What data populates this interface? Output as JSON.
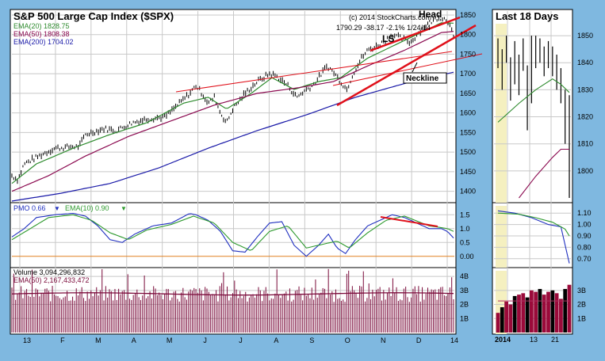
{
  "colors": {
    "frame_bg": "#7fb8e0",
    "panel_bg": "#ffffff",
    "grid": "#c8c8c8",
    "price": "#000000",
    "ema20": "#2e8b2e",
    "ema50": "#8b0a50",
    "ema200": "#1a1aa8",
    "annotation": "#e0101a",
    "pmo": "#2030c0",
    "pmo_ema": "#2e9a2e",
    "zero_line": "#e08020",
    "volume": "#7a0a3a",
    "volume_ema": "#7a0a3a",
    "last_days_bg": "#f5f0c0"
  },
  "main": {
    "title": "S&P 500 Large Cap Index ($SPX)",
    "copyright": "(c) 2014 StockCharts.com",
    "quote": "1790.29  -38.17  -2.1%  1/24/14",
    "legend": [
      {
        "label": "EMA(20) 1828.75",
        "color": "#2e8b2e"
      },
      {
        "label": "EMA(50) 1808.38",
        "color": "#8b0a50"
      },
      {
        "label": "EMA(200) 1704.02",
        "color": "#1a1aa8"
      }
    ],
    "annotations": {
      "head": "Head",
      "ls": "LS",
      "neckline": "Neckline"
    },
    "month_labels": [
      "13",
      "F",
      "M",
      "A",
      "M",
      "J",
      "J",
      "A",
      "S",
      "O",
      "N",
      "D",
      "14"
    ]
  },
  "pmo_panel": {
    "label_pmo": "PMO  0.66",
    "label_ema": "EMA(10)  0.90",
    "arrow_down": "▼"
  },
  "volume_panel": {
    "label_volume": "Volume  3,094,296,832",
    "label_ema": "EMA(50)  2,167,433,472"
  },
  "side": {
    "title": "Last 18 Days",
    "x_labels": [
      "2014",
      "13",
      "21"
    ]
  },
  "chart_data": [
    {
      "type": "line",
      "title": "S&P 500 Large Cap Index ($SPX)",
      "ylim": [
        1375,
        1860
      ],
      "yticks": [
        1400,
        1450,
        1500,
        1550,
        1600,
        1650,
        1700,
        1750,
        1800,
        1850
      ],
      "x_month_labels": [
        "13",
        "F",
        "M",
        "A",
        "M",
        "J",
        "J",
        "A",
        "S",
        "O",
        "N",
        "D",
        "14"
      ],
      "series": [
        {
          "name": "$SPX",
          "anchors": [
            [
              0,
              1440
            ],
            [
              5,
              1430
            ],
            [
              10,
              1470
            ],
            [
              25,
              1495
            ],
            [
              35,
              1510
            ],
            [
              55,
              1515
            ],
            [
              60,
              1545
            ],
            [
              75,
              1560
            ],
            [
              85,
              1555
            ],
            [
              98,
              1575
            ],
            [
              110,
              1585
            ],
            [
              125,
              1590
            ],
            [
              135,
              1620
            ],
            [
              145,
              1650
            ],
            [
              150,
              1670
            ],
            [
              155,
              1650
            ],
            [
              160,
              1625
            ],
            [
              165,
              1640
            ],
            [
              170,
              1600
            ],
            [
              175,
              1575
            ],
            [
              180,
              1610
            ],
            [
              190,
              1650
            ],
            [
              200,
              1680
            ],
            [
              210,
              1700
            ],
            [
              215,
              1695
            ],
            [
              225,
              1670
            ],
            [
              232,
              1640
            ],
            [
              238,
              1655
            ],
            [
              245,
              1670
            ],
            [
              250,
              1690
            ],
            [
              257,
              1720
            ],
            [
              262,
              1705
            ],
            [
              268,
              1680
            ],
            [
              273,
              1660
            ],
            [
              278,
              1700
            ],
            [
              285,
              1740
            ],
            [
              290,
              1760
            ],
            [
              300,
              1775
            ],
            [
              310,
              1800
            ],
            [
              318,
              1790
            ],
            [
              325,
              1780
            ],
            [
              333,
              1810
            ],
            [
              340,
              1830
            ],
            [
              348,
              1845
            ],
            [
              353,
              1840
            ],
            [
              357,
              1830
            ],
            [
              360,
              1790
            ]
          ]
        },
        {
          "name": "EMA(20)",
          "anchors": [
            [
              0,
              1420
            ],
            [
              20,
              1470
            ],
            [
              50,
              1510
            ],
            [
              80,
              1545
            ],
            [
              110,
              1575
            ],
            [
              140,
              1625
            ],
            [
              160,
              1640
            ],
            [
              175,
              1610
            ],
            [
              195,
              1650
            ],
            [
              212,
              1690
            ],
            [
              230,
              1660
            ],
            [
              250,
              1680
            ],
            [
              268,
              1690
            ],
            [
              290,
              1740
            ],
            [
              320,
              1785
            ],
            [
              350,
              1830
            ],
            [
              360,
              1829
            ]
          ]
        },
        {
          "name": "EMA(50)",
          "anchors": [
            [
              0,
              1400
            ],
            [
              30,
              1440
            ],
            [
              60,
              1490
            ],
            [
              95,
              1540
            ],
            [
              130,
              1580
            ],
            [
              165,
              1620
            ],
            [
              200,
              1650
            ],
            [
              235,
              1665
            ],
            [
              262,
              1680
            ],
            [
              290,
              1720
            ],
            [
              320,
              1760
            ],
            [
              350,
              1805
            ],
            [
              360,
              1808
            ]
          ]
        },
        {
          "name": "EMA(200)",
          "anchors": [
            [
              0,
              1375
            ],
            [
              40,
              1395
            ],
            [
              80,
              1420
            ],
            [
              120,
              1460
            ],
            [
              160,
              1510
            ],
            [
              200,
              1555
            ],
            [
              240,
              1595
            ],
            [
              280,
              1640
            ],
            [
              320,
              1675
            ],
            [
              360,
              1704
            ]
          ]
        }
      ]
    },
    {
      "type": "line",
      "title": "PMO",
      "ylim": [
        -0.35,
        1.85
      ],
      "yticks": [
        0.0,
        0.5,
        1.0,
        1.5
      ],
      "series": [
        {
          "name": "PMO",
          "anchors": [
            [
              0,
              0.7
            ],
            [
              10,
              1.0
            ],
            [
              20,
              1.4
            ],
            [
              35,
              1.5
            ],
            [
              50,
              1.55
            ],
            [
              60,
              1.45
            ],
            [
              70,
              1.1
            ],
            [
              80,
              0.6
            ],
            [
              90,
              0.5
            ],
            [
              100,
              0.8
            ],
            [
              115,
              1.1
            ],
            [
              130,
              1.2
            ],
            [
              145,
              1.55
            ],
            [
              150,
              1.5
            ],
            [
              160,
              1.3
            ],
            [
              170,
              0.9
            ],
            [
              180,
              0.2
            ],
            [
              190,
              0.15
            ],
            [
              200,
              0.7
            ],
            [
              210,
              1.2
            ],
            [
              220,
              1.25
            ],
            [
              230,
              0.4
            ],
            [
              240,
              0.0
            ],
            [
              250,
              0.4
            ],
            [
              258,
              0.8
            ],
            [
              265,
              0.3
            ],
            [
              272,
              0.1
            ],
            [
              280,
              0.6
            ],
            [
              290,
              1.1
            ],
            [
              300,
              1.3
            ],
            [
              310,
              1.5
            ],
            [
              320,
              1.4
            ],
            [
              330,
              1.2
            ],
            [
              340,
              1.0
            ],
            [
              350,
              1.0
            ],
            [
              355,
              0.9
            ],
            [
              360,
              0.66
            ]
          ]
        },
        {
          "name": "EMA(10)",
          "anchors": [
            [
              0,
              0.6
            ],
            [
              15,
              1.0
            ],
            [
              30,
              1.4
            ],
            [
              50,
              1.5
            ],
            [
              65,
              1.3
            ],
            [
              80,
              0.85
            ],
            [
              95,
              0.6
            ],
            [
              110,
              0.95
            ],
            [
              130,
              1.15
            ],
            [
              148,
              1.45
            ],
            [
              165,
              1.2
            ],
            [
              180,
              0.5
            ],
            [
              195,
              0.2
            ],
            [
              210,
              0.9
            ],
            [
              225,
              1.1
            ],
            [
              240,
              0.3
            ],
            [
              255,
              0.45
            ],
            [
              265,
              0.55
            ],
            [
              275,
              0.3
            ],
            [
              290,
              0.85
            ],
            [
              305,
              1.3
            ],
            [
              320,
              1.45
            ],
            [
              340,
              1.1
            ],
            [
              355,
              1.0
            ],
            [
              360,
              0.9
            ]
          ]
        }
      ]
    },
    {
      "type": "bar",
      "title": "Volume",
      "ylim": [
        0,
        4.4
      ],
      "ytick_labels": [
        "1B",
        "2B",
        "3B",
        "4B"
      ],
      "yticks": [
        1,
        2,
        3,
        4
      ],
      "typical_level_billion": 2.9,
      "ema50_billion": 2.17,
      "last_bar_billion": 3.09
    },
    {
      "type": "line",
      "title": "Last 18 Days",
      "ylim": [
        1790,
        1855
      ],
      "yticks": [
        1800,
        1810,
        1820,
        1830,
        1840,
        1850
      ],
      "series": [
        {
          "name": "$SPX daily range",
          "bars": [
            [
              1838,
              1849
            ],
            [
              1830,
              1845
            ],
            [
              1840,
              1850
            ],
            [
              1826,
              1842
            ],
            [
              1832,
              1848
            ],
            [
              1828,
              1843
            ],
            [
              1837,
              1849
            ],
            [
              1815,
              1839
            ],
            [
              1825,
              1850
            ],
            [
              1838,
              1850
            ],
            [
              1840,
              1849
            ],
            [
              1835,
              1846
            ],
            [
              1838,
              1848
            ],
            [
              1835,
              1846
            ],
            [
              1830,
              1843
            ],
            [
              1825,
              1838
            ],
            [
              1810,
              1830
            ],
            [
              1790,
              1828
            ]
          ]
        },
        {
          "name": "EMA(20)",
          "anchors": [
            [
              0,
              1818
            ],
            [
              5,
              1825
            ],
            [
              9,
              1830
            ],
            [
              13,
              1834
            ],
            [
              15,
              1832
            ],
            [
              17,
              1829
            ]
          ]
        },
        {
          "name": "EMA(50)",
          "anchors": [
            [
              5,
              1790
            ],
            [
              9,
              1798
            ],
            [
              13,
              1805
            ],
            [
              15,
              1808
            ],
            [
              17,
              1808
            ]
          ]
        }
      ]
    }
  ]
}
